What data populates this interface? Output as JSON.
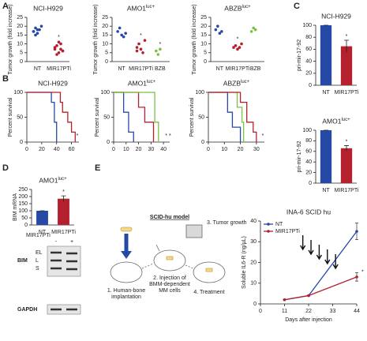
{
  "panel_labels": [
    "A",
    "B",
    "C",
    "D",
    "E"
  ],
  "chart_data": [
    {
      "type": "dot",
      "title": "NCI-H929",
      "ylabel": "Tumor growth (fold increase)",
      "categories": [
        "NT",
        "MIR17PTi"
      ],
      "colors": [
        "#2649a6",
        "#b5202e"
      ],
      "values": [
        [
          17,
          19,
          16,
          18,
          20,
          17,
          15,
          18
        ],
        [
          7,
          9,
          5,
          10,
          6,
          8,
          4,
          11,
          7,
          6
        ]
      ],
      "stars": [
        null,
        "*"
      ],
      "ylim": [
        0,
        25
      ],
      "yticks": [
        0,
        5,
        10,
        15,
        20,
        25
      ]
    },
    {
      "type": "dot",
      "title": "AMO1",
      "title_sup": "luc+",
      "ylabel": "Tumor growth (fold increase)",
      "categories": [
        "NT",
        "MIR17PTi",
        "BZB"
      ],
      "colors": [
        "#2649a6",
        "#b5202e",
        "#7ac143"
      ],
      "values": [
        [
          17,
          19,
          15,
          14,
          16
        ],
        [
          8,
          10,
          7,
          5,
          12,
          6
        ],
        [
          6,
          4,
          7
        ]
      ],
      "stars": [
        null,
        "*",
        "*"
      ],
      "ylim": [
        0,
        25
      ],
      "yticks": [
        0,
        5,
        10,
        15,
        20,
        25
      ]
    },
    {
      "type": "dot",
      "title": "ABZB",
      "title_sup": "luc+",
      "ylabel": "Tumor growth (fold increase)",
      "categories": [
        "NT",
        "MIR17PTi",
        "BZB"
      ],
      "colors": [
        "#2649a6",
        "#b5202e",
        "#7ac143"
      ],
      "values": [
        [
          18,
          20,
          16,
          17
        ],
        [
          8,
          9,
          7,
          8,
          10
        ],
        [
          17,
          19,
          18
        ]
      ],
      "stars": [
        null,
        "*",
        null
      ],
      "ylim": [
        0,
        25
      ],
      "yticks": [
        0,
        5,
        10,
        15,
        20,
        25
      ]
    },
    {
      "type": "survival",
      "title": "NCI-H929",
      "ylabel": "Percent survival",
      "xlim": [
        0,
        70
      ],
      "xticks": [
        0,
        20,
        40,
        60
      ],
      "ylim": [
        0,
        100
      ],
      "yticks": [
        0,
        50,
        100
      ],
      "star": "*",
      "series": [
        {
          "color": "#2649a6",
          "x": [
            0,
            33,
            37,
            40
          ],
          "values": [
            100,
            80,
            40,
            0
          ]
        },
        {
          "color": "#b5202e",
          "x": [
            0,
            45,
            48,
            55,
            60,
            65
          ],
          "values": [
            100,
            80,
            60,
            40,
            20,
            0
          ]
        }
      ]
    },
    {
      "type": "survival",
      "title": "AMO1",
      "title_sup": "luc+",
      "ylabel": "Percent survival",
      "xlim": [
        0,
        45
      ],
      "xticks": [
        0,
        10,
        20,
        30,
        40
      ],
      "ylim": [
        0,
        100
      ],
      "yticks": [
        0,
        50,
        100
      ],
      "star": "* *",
      "series": [
        {
          "color": "#2649a6",
          "x": [
            0,
            8,
            12,
            16
          ],
          "values": [
            100,
            60,
            20,
            0
          ]
        },
        {
          "color": "#b5202e",
          "x": [
            0,
            20,
            25,
            32
          ],
          "values": [
            100,
            70,
            40,
            0
          ]
        },
        {
          "color": "#7ac143",
          "x": [
            0,
            33,
            36
          ],
          "values": [
            100,
            40,
            0
          ]
        }
      ]
    },
    {
      "type": "survival",
      "title": "ABZB",
      "title_sup": "luc+",
      "ylabel": "Percent survival",
      "xlim": [
        0,
        35
      ],
      "xticks": [
        0,
        10,
        20,
        30
      ],
      "ylim": [
        0,
        100
      ],
      "yticks": [
        0,
        50,
        100
      ],
      "star": "*",
      "series": [
        {
          "color": "#2649a6",
          "x": [
            0,
            12,
            15,
            20
          ],
          "values": [
            100,
            60,
            30,
            0
          ]
        },
        {
          "color": "#7ac143",
          "x": [
            0,
            18,
            21,
            22
          ],
          "values": [
            100,
            70,
            40,
            0
          ]
        },
        {
          "color": "#b5202e",
          "x": [
            0,
            20,
            24,
            28,
            30
          ],
          "values": [
            100,
            80,
            40,
            20,
            0
          ]
        }
      ]
    },
    {
      "type": "bar",
      "title": "NCI-H929",
      "ylabel": "pri-mir-17-92",
      "categories": [
        "NT",
        "MIR17PTi"
      ],
      "colors": [
        "#2649a6",
        "#b5202e"
      ],
      "values": [
        100,
        65
      ],
      "errors": [
        0,
        10
      ],
      "stars": [
        null,
        "*"
      ],
      "ylim": [
        0,
        100
      ],
      "yticks": [
        0,
        20,
        40,
        60,
        80,
        100
      ]
    },
    {
      "type": "bar",
      "title": "AMO1",
      "title_sup": "luc+",
      "ylabel": "pri-mir-17-92",
      "categories": [
        "NT",
        "MIR17PTi"
      ],
      "colors": [
        "#2649a6",
        "#b5202e"
      ],
      "values": [
        100,
        66
      ],
      "errors": [
        0,
        5
      ],
      "stars": [
        null,
        "*"
      ],
      "ylim": [
        0,
        100
      ],
      "yticks": [
        0,
        20,
        40,
        60,
        80,
        100
      ]
    },
    {
      "type": "bar",
      "title": "AMO1",
      "title_sup": "luc+",
      "ylabel": "BIM mRNA",
      "categories": [
        "NT",
        "MIR17PTi"
      ],
      "colors": [
        "#2649a6",
        "#b5202e"
      ],
      "values": [
        100,
        185
      ],
      "errors": [
        0,
        20
      ],
      "stars": [
        null,
        "*"
      ],
      "ylim": [
        0,
        250
      ],
      "yticks": [
        0,
        50,
        100,
        150,
        200,
        250
      ]
    },
    {
      "type": "line",
      "title": "INA-6 SCID hu",
      "xlabel": "Days after injection",
      "ylabel": "Soluble IL6-R (ng/µL)",
      "xlim": [
        0,
        44
      ],
      "xticks": [
        0,
        11,
        22,
        33,
        44
      ],
      "ylim": [
        0,
        40
      ],
      "yticks": [
        0,
        10,
        20,
        30,
        40
      ],
      "star": "*",
      "series": [
        {
          "name": "NT",
          "color": "#2649a6",
          "x": [
            11,
            22,
            44
          ],
          "values": [
            2,
            4,
            35
          ],
          "errors": [
            0,
            0,
            4
          ]
        },
        {
          "name": "MIR17PTi",
          "color": "#b5202e",
          "x": [
            11,
            22,
            44
          ],
          "values": [
            2,
            4,
            13
          ],
          "errors": [
            0,
            0,
            2
          ]
        }
      ]
    }
  ],
  "blot": {
    "treatment": "MIR17PTi",
    "lanes": [
      "-",
      "+"
    ],
    "protein": "BIM",
    "isoforms": [
      "EL",
      "L",
      "S"
    ],
    "control": "GAPDH"
  },
  "diagram": {
    "title": "SCID-hu model",
    "steps": [
      [
        "1. Human-bone",
        "implantation"
      ],
      [
        "2. Injection of",
        "BMM-dependent",
        "MM cells"
      ],
      [
        "3. Tumor growth"
      ],
      [
        "4. Treatment"
      ]
    ]
  }
}
